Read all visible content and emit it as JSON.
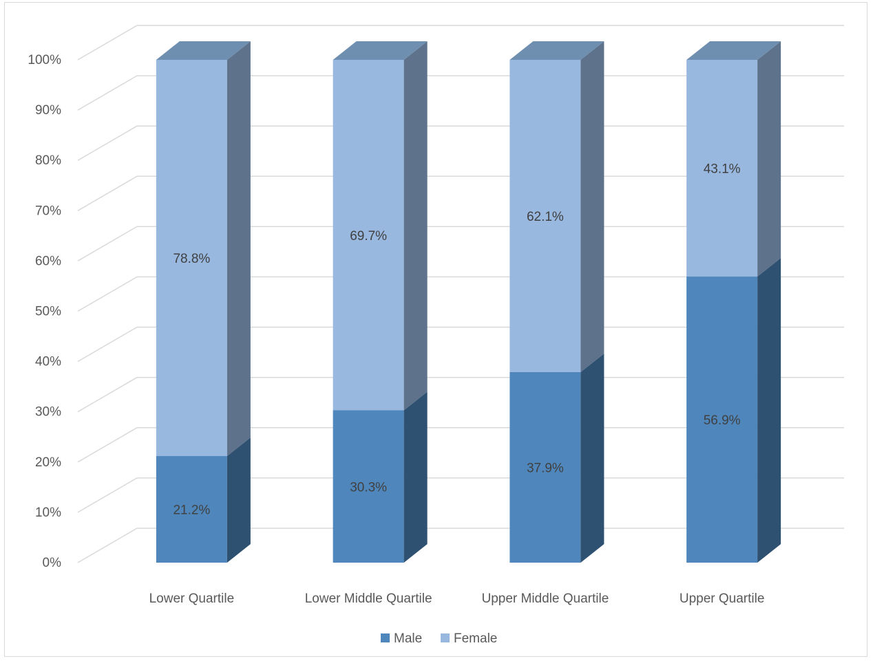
{
  "chart_data": {
    "type": "bar",
    "stacked": true,
    "percent_stacked": true,
    "three_d": true,
    "categories": [
      "Lower Quartile",
      "Lower Middle Quartile",
      "Upper Middle Quartile",
      "Upper Quartile"
    ],
    "series": [
      {
        "name": "Male",
        "values": [
          21.2,
          30.3,
          37.9,
          56.9
        ],
        "labels": [
          "21.2%",
          "30.3%",
          "37.9%",
          "56.9%"
        ],
        "color": "#4f87bd"
      },
      {
        "name": "Female",
        "values": [
          78.8,
          69.7,
          62.1,
          43.1
        ],
        "labels": [
          "78.8%",
          "69.7%",
          "62.1%",
          "43.1%"
        ],
        "color": "#98b8e0"
      }
    ],
    "y_ticks": [
      "0%",
      "10%",
      "20%",
      "30%",
      "40%",
      "50%",
      "60%",
      "70%",
      "80%",
      "90%",
      "100%"
    ],
    "ylim": [
      0,
      100
    ],
    "grid": true,
    "legend_position": "bottom",
    "title": "",
    "xlabel": "",
    "ylabel": ""
  }
}
